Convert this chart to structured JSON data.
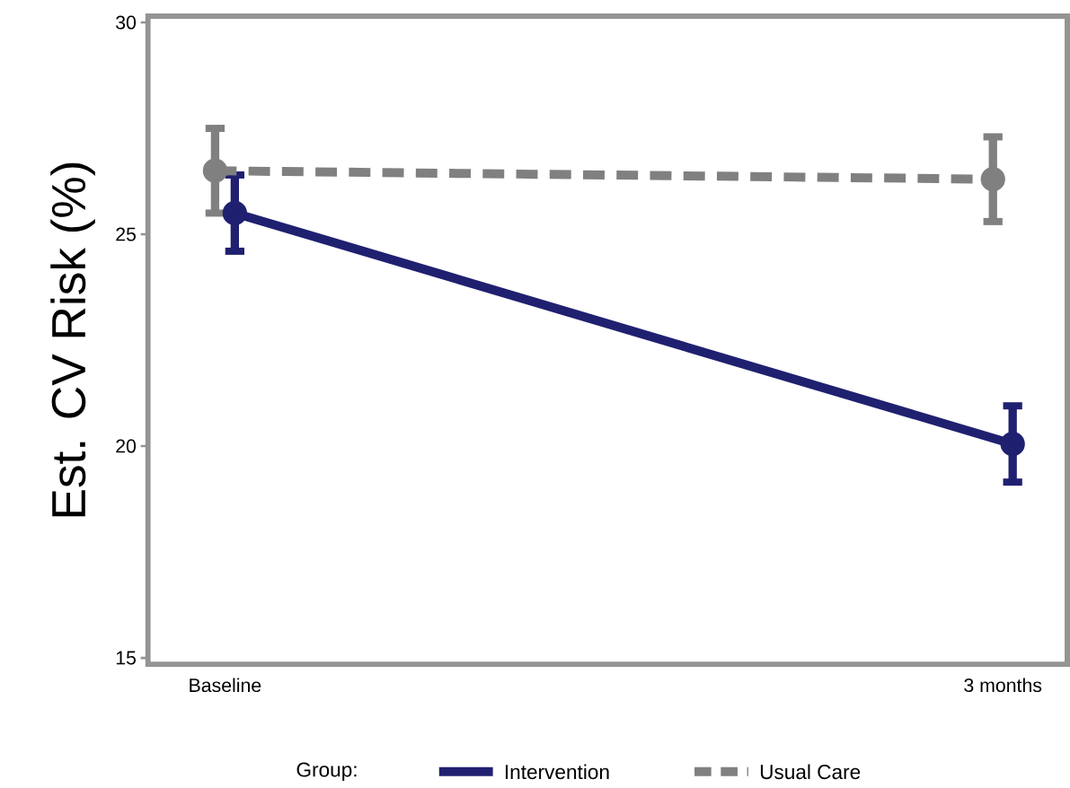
{
  "chart_data": {
    "type": "line",
    "ylabel": "Est. CV Risk (%)",
    "legend_title": "Group:",
    "legend": "bottom",
    "marker": "circle",
    "categories": [
      "Baseline",
      "3 months"
    ],
    "ylim": [
      14.85,
      30.15
    ],
    "yticks": [
      15,
      20,
      25,
      30
    ],
    "series": [
      {
        "name": "Intervention",
        "color": "#202070",
        "line_style": "solid",
        "values": [
          25.5,
          20.05
        ],
        "errors": [
          0.9,
          0.9
        ]
      },
      {
        "name": "Usual Care",
        "color": "#808080",
        "line_style": "dashed",
        "values": [
          26.5,
          26.3
        ],
        "errors": [
          1.0,
          1.0
        ]
      }
    ]
  }
}
